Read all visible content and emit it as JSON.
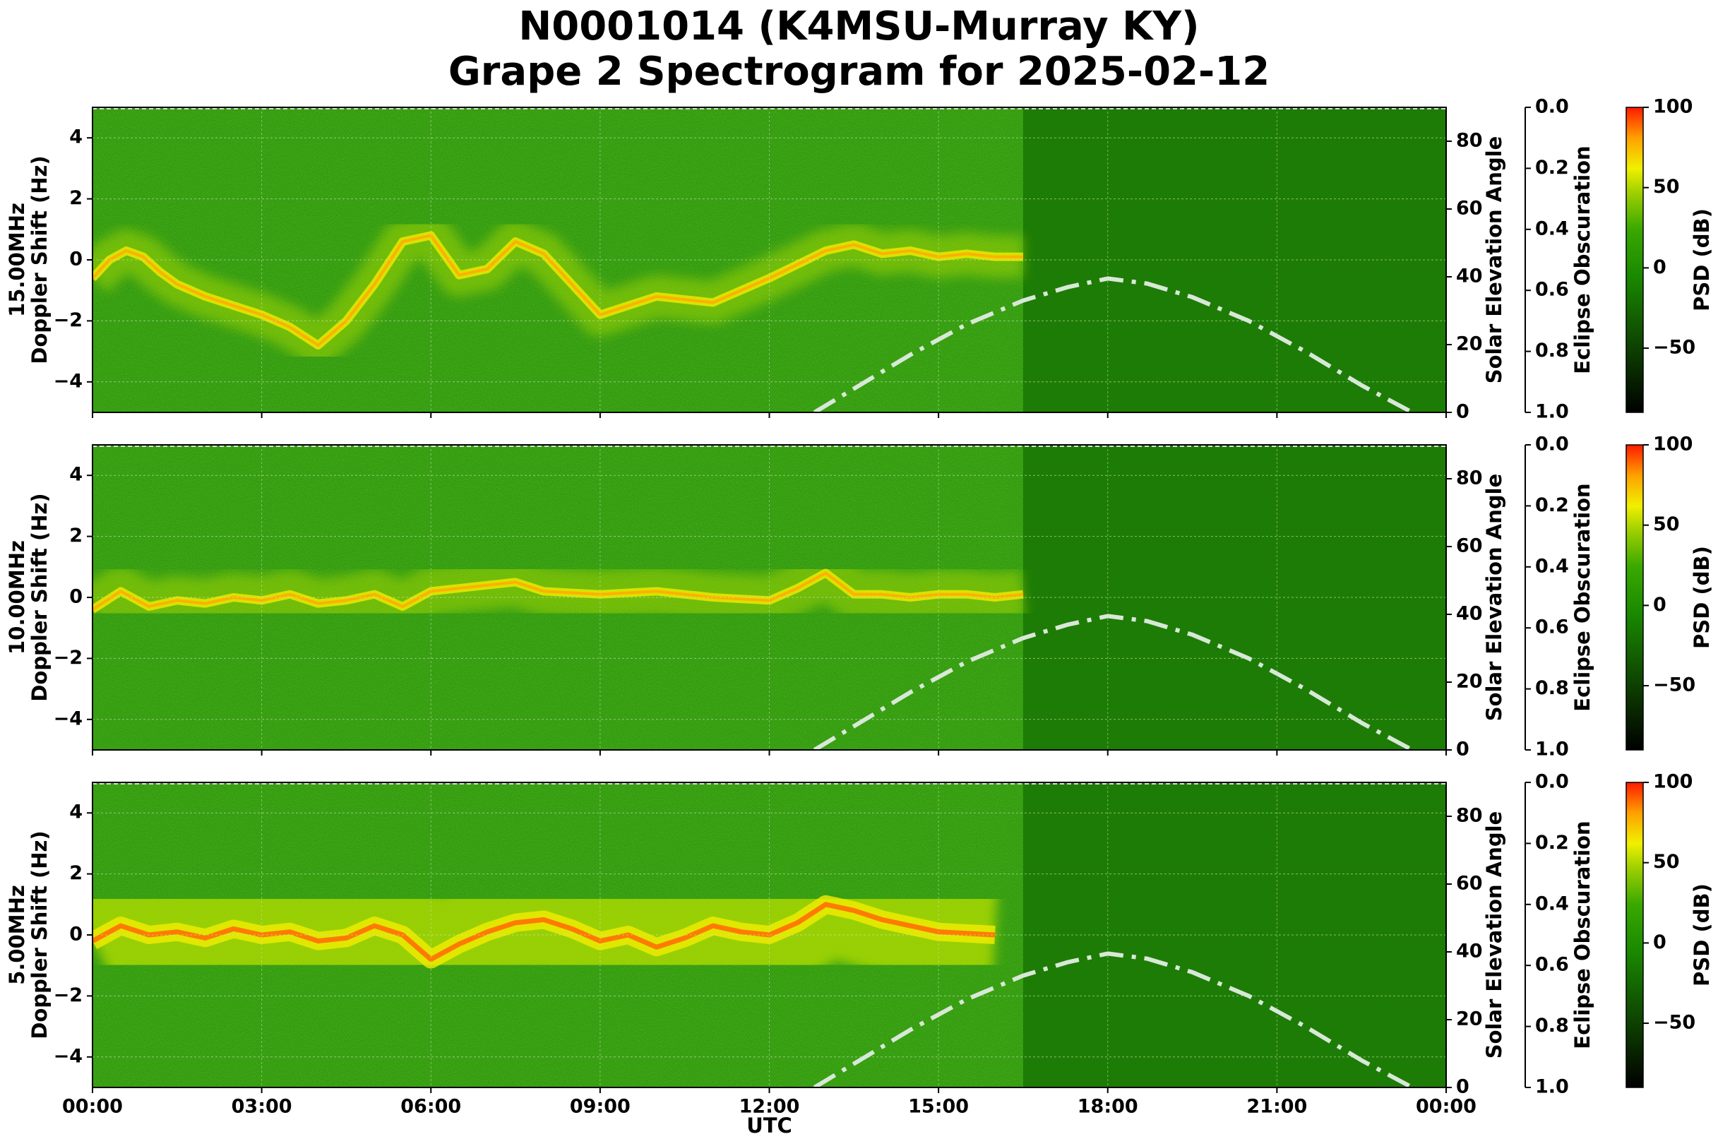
{
  "title_line1": "N0001014 (K4MSU-Murray KY)",
  "title_line2": "Grape 2 Spectrogram for 2025-02-12",
  "chart_data": [
    {
      "type": "heatmap",
      "panel_label": "15.00MHz",
      "ylabel": "Doppler Shift (Hz)",
      "xlabel": "",
      "xlim": [
        "00:00",
        "24:00"
      ],
      "ylim": [
        -5,
        5
      ],
      "y_ticks": [
        -4,
        -2,
        0,
        2,
        4
      ],
      "secondary_ylabel": "Solar Elevation Angle",
      "secondary_ylim": [
        0,
        90
      ],
      "secondary_ticks": [
        0,
        20,
        40,
        60,
        80
      ],
      "eclipse_label": "Eclipse Obscuration",
      "eclipse_ticks": [
        "0.0",
        "0.2",
        "0.4",
        "0.6",
        "0.8",
        "1.0"
      ],
      "colorbar_label": "PSD (dB)",
      "colorbar_ticks": [
        100,
        50,
        0,
        -50
      ],
      "colorbar_range": [
        -90,
        100
      ],
      "solar_elevation": {
        "x": [
          12.8,
          13.5,
          14.5,
          15.5,
          16.5,
          17.3,
          18.0,
          18.7,
          19.5,
          20.5,
          21.5,
          22.5,
          23.4
        ],
        "y": [
          0,
          7,
          17,
          26,
          33,
          37,
          39.5,
          38,
          34,
          27,
          18,
          8,
          0
        ]
      },
      "signal_trace": {
        "x": [
          0,
          0.3,
          0.6,
          0.9,
          1.2,
          1.5,
          2.0,
          2.5,
          3.0,
          3.5,
          4.0,
          4.5,
          5.0,
          5.5,
          6.0,
          6.5,
          7.0,
          7.5,
          8.0,
          8.5,
          9.0,
          10.0,
          11.0,
          12.0,
          13.0,
          13.5,
          14.0,
          14.5,
          15.0,
          15.5,
          16.0,
          16.5
        ],
        "y": [
          -0.6,
          0.0,
          0.3,
          0.1,
          -0.4,
          -0.8,
          -1.2,
          -1.5,
          -1.8,
          -2.2,
          -2.8,
          -2.0,
          -0.8,
          0.6,
          0.8,
          -0.5,
          -0.3,
          0.6,
          0.2,
          -0.8,
          -1.8,
          -1.2,
          -1.4,
          -0.6,
          0.3,
          0.5,
          0.2,
          0.3,
          0.1,
          0.2,
          0.1,
          0.1
        ]
      },
      "dark_region_start": "16:30"
    },
    {
      "type": "heatmap",
      "panel_label": "10.00MHz",
      "ylabel": "Doppler Shift (Hz)",
      "xlabel": "",
      "xlim": [
        "00:00",
        "24:00"
      ],
      "ylim": [
        -5,
        5
      ],
      "y_ticks": [
        -4,
        -2,
        0,
        2,
        4
      ],
      "secondary_ylabel": "Solar Elevation Angle",
      "secondary_ylim": [
        0,
        90
      ],
      "secondary_ticks": [
        0,
        20,
        40,
        60,
        80
      ],
      "eclipse_label": "Eclipse Obscuration",
      "eclipse_ticks": [
        "0.0",
        "0.2",
        "0.4",
        "0.6",
        "0.8",
        "1.0"
      ],
      "colorbar_label": "PSD (dB)",
      "colorbar_ticks": [
        100,
        50,
        0,
        -50
      ],
      "colorbar_range": [
        -90,
        100
      ],
      "solar_elevation": {
        "x": [
          12.8,
          13.5,
          14.5,
          15.5,
          16.5,
          17.3,
          18.0,
          18.7,
          19.5,
          20.5,
          21.5,
          22.5,
          23.4
        ],
        "y": [
          0,
          7,
          17,
          26,
          33,
          37,
          39.5,
          38,
          34,
          27,
          18,
          8,
          0
        ]
      },
      "signal_trace": {
        "x": [
          0,
          0.5,
          1.0,
          1.5,
          2.0,
          2.5,
          3.0,
          3.5,
          4.0,
          4.5,
          5.0,
          5.5,
          6.0,
          6.5,
          7.0,
          7.5,
          8.0,
          9.0,
          10.0,
          11.0,
          12.0,
          12.5,
          13.0,
          13.5,
          14.0,
          14.5,
          15.0,
          15.5,
          16.0,
          16.5
        ],
        "y": [
          -0.4,
          0.2,
          -0.3,
          -0.1,
          -0.2,
          0.0,
          -0.1,
          0.1,
          -0.2,
          -0.1,
          0.1,
          -0.3,
          0.2,
          0.3,
          0.4,
          0.5,
          0.2,
          0.1,
          0.2,
          0.0,
          -0.1,
          0.3,
          0.8,
          0.1,
          0.1,
          0.0,
          0.1,
          0.1,
          0.0,
          0.1
        ]
      },
      "dark_region_start": "16:30"
    },
    {
      "type": "heatmap",
      "panel_label": "5.00MHz",
      "ylabel": "Doppler Shift (Hz)",
      "xlabel": "UTC",
      "xlim": [
        "00:00",
        "24:00"
      ],
      "x_ticks": [
        "00:00",
        "03:00",
        "06:00",
        "09:00",
        "12:00",
        "15:00",
        "18:00",
        "21:00",
        "00:00"
      ],
      "ylim": [
        -5,
        5
      ],
      "y_ticks": [
        -4,
        -2,
        0,
        2,
        4
      ],
      "secondary_ylabel": "Solar Elevation Angle",
      "secondary_ylim": [
        0,
        90
      ],
      "secondary_ticks": [
        0,
        20,
        40,
        60,
        80
      ],
      "eclipse_label": "Eclipse Obscuration",
      "eclipse_ticks": [
        "0.0",
        "0.2",
        "0.4",
        "0.6",
        "0.8",
        "1.0"
      ],
      "colorbar_label": "PSD (dB)",
      "colorbar_ticks": [
        100,
        50,
        0,
        -50
      ],
      "colorbar_range": [
        -90,
        100
      ],
      "solar_elevation": {
        "x": [
          12.8,
          13.5,
          14.5,
          15.5,
          16.5,
          17.3,
          18.0,
          18.7,
          19.5,
          20.5,
          21.5,
          22.5,
          23.4
        ],
        "y": [
          0,
          7,
          17,
          26,
          33,
          37,
          39.5,
          38,
          34,
          27,
          18,
          8,
          0
        ]
      },
      "signal_trace": {
        "x": [
          0,
          0.5,
          1.0,
          1.5,
          2.0,
          2.5,
          3.0,
          3.5,
          4.0,
          4.5,
          5.0,
          5.5,
          6.0,
          6.5,
          7.0,
          7.5,
          8.0,
          8.5,
          9.0,
          9.5,
          10.0,
          10.5,
          11.0,
          11.5,
          12.0,
          12.5,
          13.0,
          13.5,
          14.0,
          14.5,
          15.0,
          16.0
        ],
        "y": [
          -0.2,
          0.3,
          0.0,
          0.1,
          -0.1,
          0.2,
          0.0,
          0.1,
          -0.2,
          -0.1,
          0.3,
          0.0,
          -0.8,
          -0.3,
          0.1,
          0.4,
          0.5,
          0.2,
          -0.2,
          0.0,
          -0.4,
          -0.1,
          0.3,
          0.1,
          0.0,
          0.4,
          1.0,
          0.8,
          0.5,
          0.3,
          0.1,
          0.0
        ]
      },
      "dark_region_start": "16:30"
    }
  ]
}
